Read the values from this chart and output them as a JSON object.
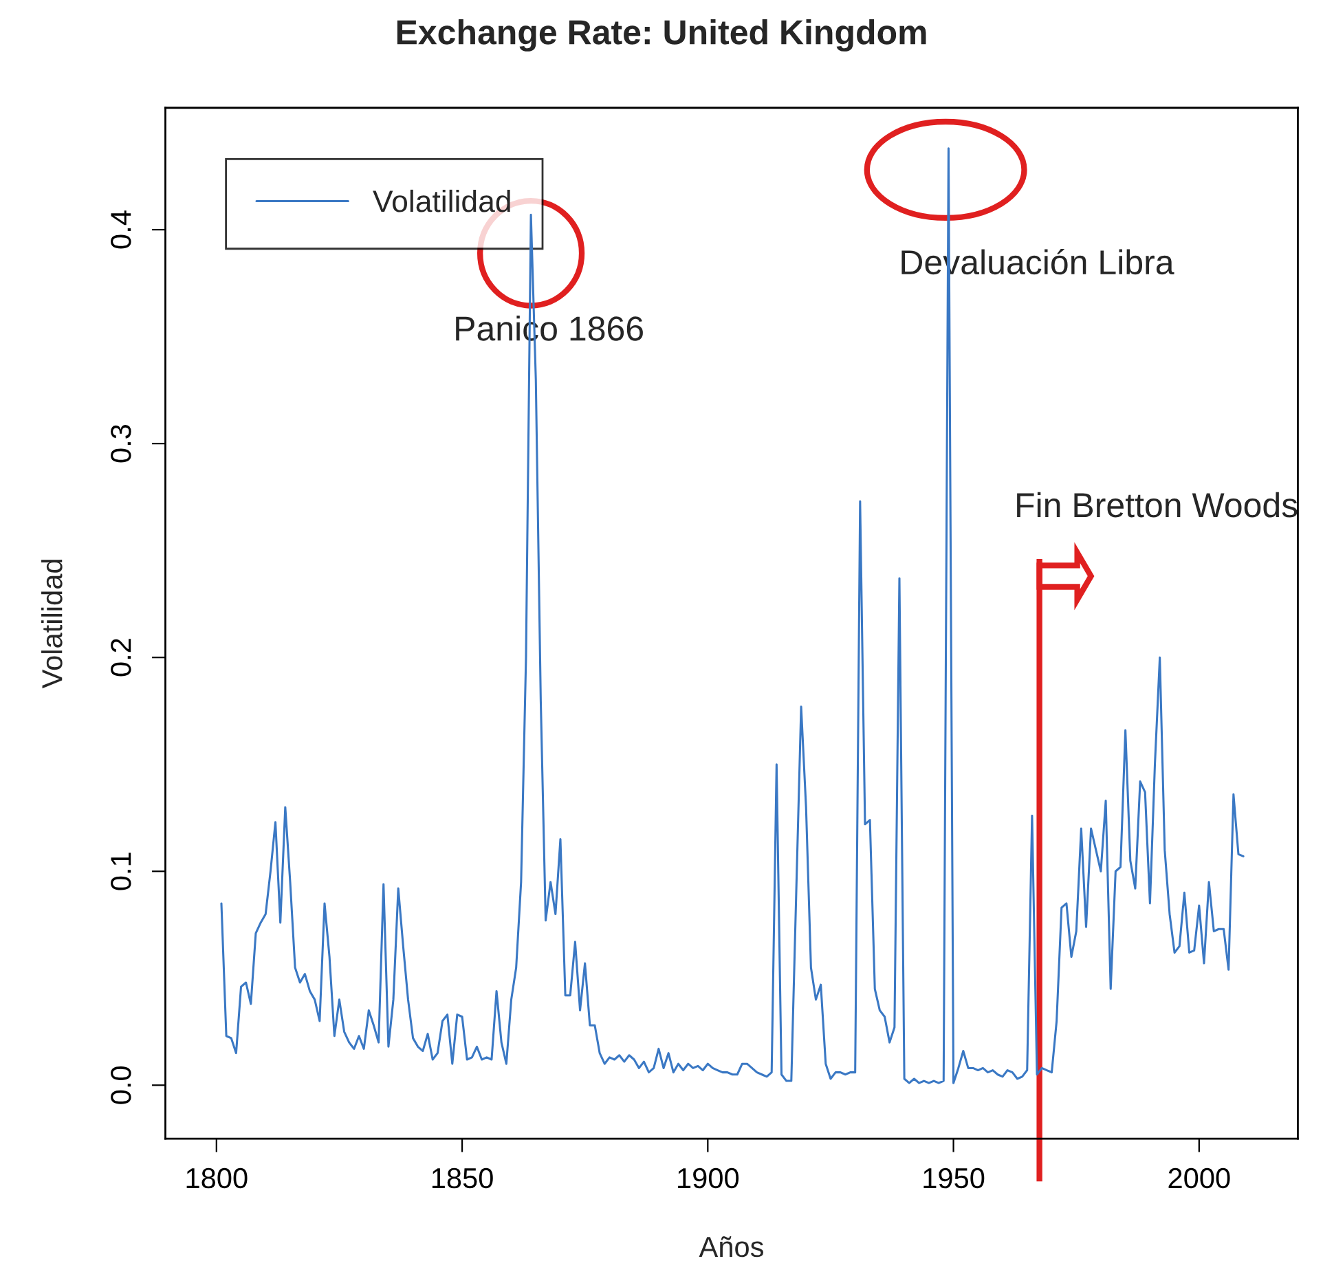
{
  "chart_data": {
    "type": "line",
    "title": "Exchange Rate: United Kingdom",
    "xlabel": "Años",
    "ylabel": "Volatilidad",
    "xlim": [
      1789.6,
      2020.1
    ],
    "ylim": [
      -0.025,
      0.457
    ],
    "xticks": [
      1800,
      1850,
      1900,
      1950,
      2000
    ],
    "yticks": [
      {
        "value": 0,
        "label": "0.0"
      },
      {
        "value": 0.1,
        "label": "0.1"
      },
      {
        "value": 0.2,
        "label": "0.2"
      },
      {
        "value": 0.3,
        "label": "0.3"
      },
      {
        "value": 0.4,
        "label": "0.4"
      }
    ],
    "grid": false,
    "legend": "top left",
    "marker": "none",
    "line_style": "solid",
    "series": [
      {
        "name": "Volatilidad",
        "color": "#3a78c4",
        "x": [
          1801,
          1802,
          1803,
          1804,
          1805,
          1806,
          1807,
          1808,
          1809,
          1810,
          1811,
          1812,
          1813,
          1814,
          1815,
          1816,
          1817,
          1818,
          1819,
          1820,
          1821,
          1822,
          1823,
          1824,
          1825,
          1826,
          1827,
          1828,
          1829,
          1830,
          1831,
          1832,
          1833,
          1834,
          1835,
          1836,
          1837,
          1838,
          1839,
          1840,
          1841,
          1842,
          1843,
          1844,
          1845,
          1846,
          1847,
          1848,
          1849,
          1850,
          1851,
          1852,
          1853,
          1854,
          1855,
          1856,
          1857,
          1858,
          1859,
          1860,
          1861,
          1862,
          1863,
          1864,
          1865,
          1866,
          1867,
          1868,
          1869,
          1870,
          1871,
          1872,
          1873,
          1874,
          1875,
          1876,
          1877,
          1878,
          1879,
          1880,
          1881,
          1882,
          1883,
          1884,
          1885,
          1886,
          1887,
          1888,
          1889,
          1890,
          1891,
          1892,
          1893,
          1894,
          1895,
          1896,
          1897,
          1898,
          1899,
          1900,
          1901,
          1902,
          1903,
          1904,
          1905,
          1906,
          1907,
          1908,
          1909,
          1910,
          1911,
          1912,
          1913,
          1914,
          1915,
          1916,
          1917,
          1918,
          1919,
          1920,
          1921,
          1922,
          1923,
          1924,
          1925,
          1926,
          1927,
          1928,
          1929,
          1930,
          1931,
          1932,
          1933,
          1934,
          1935,
          1936,
          1937,
          1938,
          1939,
          1940,
          1941,
          1942,
          1943,
          1944,
          1945,
          1946,
          1947,
          1948,
          1949,
          1950,
          1951,
          1952,
          1953,
          1954,
          1955,
          1956,
          1957,
          1958,
          1959,
          1960,
          1961,
          1962,
          1963,
          1964,
          1965,
          1966,
          1967,
          1968,
          1969,
          1970,
          1971,
          1972,
          1973,
          1974,
          1975,
          1976,
          1977,
          1978,
          1979,
          1980,
          1981,
          1982,
          1983,
          1984,
          1985,
          1986,
          1987,
          1988,
          1989,
          1990,
          1991,
          1992,
          1993,
          1994,
          1995,
          1996,
          1997,
          1998,
          1999,
          2000,
          2001,
          2002,
          2003,
          2004,
          2005,
          2006,
          2007,
          2008,
          2009
        ],
        "values": [
          0.085,
          0.023,
          0.022,
          0.015,
          0.046,
          0.048,
          0.038,
          0.071,
          0.076,
          0.08,
          0.1,
          0.123,
          0.076,
          0.13,
          0.095,
          0.055,
          0.048,
          0.052,
          0.044,
          0.04,
          0.03,
          0.085,
          0.06,
          0.023,
          0.04,
          0.025,
          0.02,
          0.017,
          0.023,
          0.017,
          0.035,
          0.028,
          0.02,
          0.094,
          0.018,
          0.04,
          0.092,
          0.065,
          0.04,
          0.022,
          0.018,
          0.016,
          0.024,
          0.012,
          0.015,
          0.03,
          0.033,
          0.01,
          0.033,
          0.032,
          0.012,
          0.013,
          0.018,
          0.012,
          0.013,
          0.012,
          0.044,
          0.02,
          0.01,
          0.04,
          0.055,
          0.095,
          0.2,
          0.407,
          0.33,
          0.18,
          0.077,
          0.095,
          0.08,
          0.115,
          0.042,
          0.042,
          0.067,
          0.035,
          0.057,
          0.028,
          0.028,
          0.015,
          0.01,
          0.013,
          0.012,
          0.014,
          0.011,
          0.014,
          0.012,
          0.008,
          0.011,
          0.006,
          0.008,
          0.017,
          0.008,
          0.015,
          0.006,
          0.01,
          0.007,
          0.01,
          0.008,
          0.009,
          0.007,
          0.01,
          0.008,
          0.007,
          0.006,
          0.006,
          0.005,
          0.005,
          0.01,
          0.01,
          0.008,
          0.006,
          0.005,
          0.004,
          0.006,
          0.15,
          0.005,
          0.002,
          0.002,
          0.09,
          0.177,
          0.13,
          0.055,
          0.04,
          0.047,
          0.01,
          0.003,
          0.006,
          0.006,
          0.005,
          0.006,
          0.006,
          0.273,
          0.122,
          0.124,
          0.045,
          0.035,
          0.032,
          0.02,
          0.027,
          0.237,
          0.003,
          0.001,
          0.003,
          0.001,
          0.002,
          0.001,
          0.002,
          0.001,
          0.002,
          0.438,
          0.001,
          0.008,
          0.016,
          0.008,
          0.008,
          0.007,
          0.008,
          0.006,
          0.007,
          0.005,
          0.004,
          0.007,
          0.006,
          0.003,
          0.004,
          0.007,
          0.126,
          0.005,
          0.008,
          0.007,
          0.006,
          0.03,
          0.083,
          0.085,
          0.06,
          0.072,
          0.12,
          0.074,
          0.12,
          0.11,
          0.1,
          0.133,
          0.045,
          0.1,
          0.102,
          0.166,
          0.105,
          0.092,
          0.142,
          0.137,
          0.085,
          0.15,
          0.2,
          0.11,
          0.08,
          0.062,
          0.065,
          0.09,
          0.062,
          0.063,
          0.084,
          0.057,
          0.095,
          0.072,
          0.073,
          0.073,
          0.054,
          0.136,
          0.108,
          0.107
        ]
      }
    ],
    "annotations": [
      {
        "text": "Panico 1866",
        "x": 1864,
        "y": 0.407
      },
      {
        "text": "Devaluación Libra",
        "x": 1949,
        "y": 0.438
      }
    ],
    "ref_lines": [
      {
        "axis": "x",
        "value": 1967.5,
        "label": "Fin Bretton Woods",
        "color": "#e02020"
      }
    ]
  }
}
